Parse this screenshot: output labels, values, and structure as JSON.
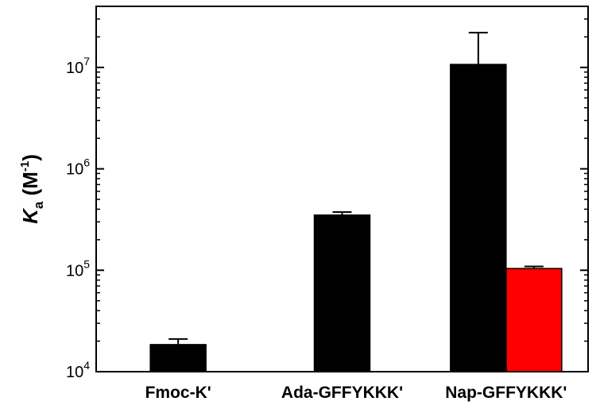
{
  "chart_data": {
    "type": "bar",
    "y_scale": "log",
    "ylim": [
      10000,
      40000000
    ],
    "ylabel": {
      "symbol": "K",
      "subscript": "a",
      "unit_prefix": " (M",
      "unit_exponent": "-1",
      "unit_suffix": ")"
    },
    "y_ticks": [
      {
        "value": 10000,
        "base": "10",
        "exp": "4"
      },
      {
        "value": 100000,
        "base": "10",
        "exp": "5"
      },
      {
        "value": 1000000,
        "base": "10",
        "exp": "6"
      },
      {
        "value": 10000000,
        "base": "10",
        "exp": "7"
      }
    ],
    "categories": [
      "Fmoc-K'",
      "Ada-GFFYKKK'",
      "Nap-GFFYKKK'"
    ],
    "series": [
      {
        "color": "#000000",
        "values": [
          18500,
          350000,
          10700000
        ],
        "errors_upper": [
          2500,
          25000,
          11300000
        ]
      },
      {
        "color": "#ff0000",
        "values": [
          null,
          null,
          104000
        ],
        "errors_upper": [
          null,
          null,
          5000
        ]
      }
    ],
    "grid": false,
    "legend": "none"
  }
}
